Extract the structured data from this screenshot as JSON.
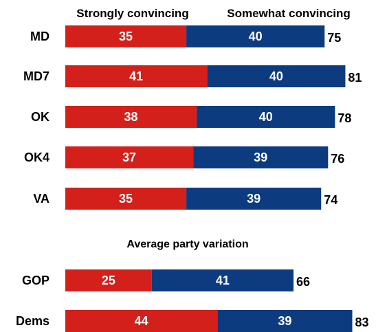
{
  "chart_data": {
    "type": "bar",
    "orientation": "horizontal",
    "stacked": true,
    "legend": [
      {
        "name": "Strongly convincing",
        "color": "#d3201b"
      },
      {
        "name": "Somewhat convincing",
        "color": "#0d3b80"
      }
    ],
    "groups": [
      {
        "title": "",
        "rows": [
          {
            "label": "MD",
            "values": [
              35,
              40
            ],
            "total": 75
          },
          {
            "label": "MD7",
            "values": [
              41,
              40
            ],
            "total": 81
          },
          {
            "label": "OK",
            "values": [
              38,
              40
            ],
            "total": 78
          },
          {
            "label": "OK4",
            "values": [
              37,
              39
            ],
            "total": 76
          },
          {
            "label": "VA",
            "values": [
              35,
              39
            ],
            "total": 74
          }
        ]
      },
      {
        "title": "Average party variation",
        "rows": [
          {
            "label": "GOP",
            "values": [
              25,
              41
            ],
            "total": 66
          },
          {
            "label": "Dems",
            "values": [
              44,
              39
            ],
            "total": 83
          }
        ]
      }
    ],
    "grid": false
  }
}
